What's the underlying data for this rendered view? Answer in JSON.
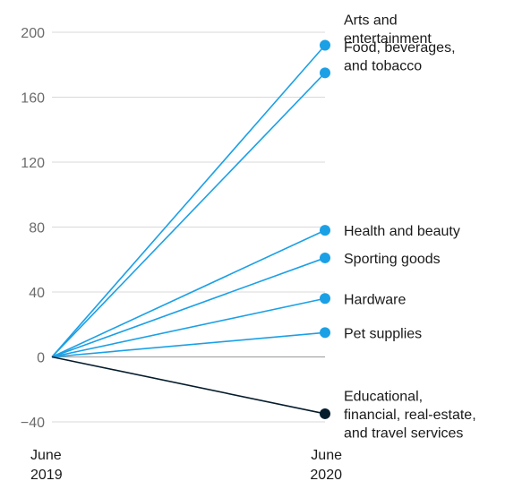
{
  "chart_data": {
    "type": "line",
    "x_labels": [
      [
        "June",
        "2019"
      ],
      [
        "June",
        "2020"
      ]
    ],
    "ylim": [
      -40,
      200
    ],
    "yticks": [
      200,
      160,
      120,
      80,
      40,
      0,
      -40
    ],
    "grid": true,
    "series": [
      {
        "name": [
          "Arts and",
          "entertainment"
        ],
        "values": [
          0,
          192
        ],
        "color": "#1ba0e6"
      },
      {
        "name": [
          "Food, beverages,",
          "and tobacco"
        ],
        "values": [
          0,
          175
        ],
        "color": "#1ba0e6"
      },
      {
        "name": [
          "Health and beauty"
        ],
        "values": [
          0,
          78
        ],
        "color": "#1ba0e6"
      },
      {
        "name": [
          "Sporting goods"
        ],
        "values": [
          0,
          61
        ],
        "color": "#1ba0e6"
      },
      {
        "name": [
          "Hardware"
        ],
        "values": [
          0,
          36
        ],
        "color": "#1ba0e6"
      },
      {
        "name": [
          "Pet supplies"
        ],
        "values": [
          0,
          15
        ],
        "color": "#1ba0e6"
      },
      {
        "name": [
          "Educational,",
          "financial, real-estate,",
          "and travel services"
        ],
        "values": [
          0,
          -35
        ],
        "color": "#051c2c"
      }
    ]
  }
}
